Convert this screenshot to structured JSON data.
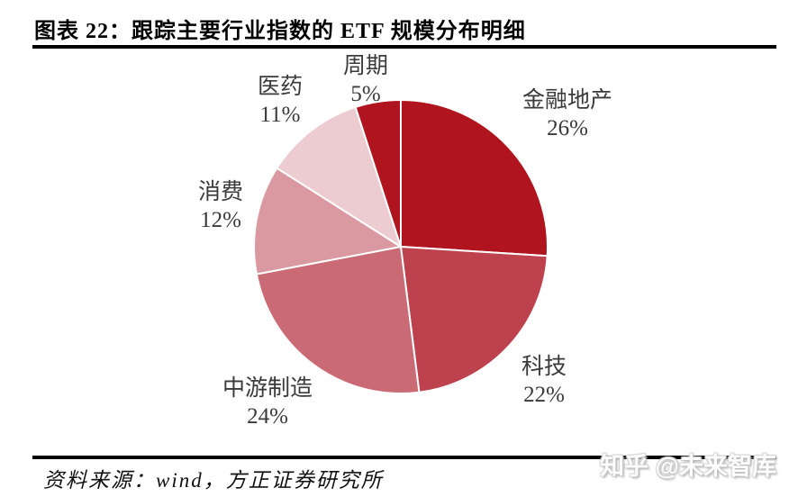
{
  "figure": {
    "title": "图表 22：跟踪主要行业指数的 ETF 规模分布明细",
    "source": "资料来源：wind，方正证券研究所",
    "watermark": "知乎 @未来智库"
  },
  "chart_data": {
    "type": "pie",
    "title": "跟踪主要行业指数的 ETF 规模分布明细",
    "start_angle_deg": 0,
    "direction": "clockwise",
    "legend_position": "none",
    "label_color": "#3A3A3A",
    "stroke_color": "#FFFFFF",
    "stroke_width": 2,
    "slices": [
      {
        "label": "金融地产",
        "value": 26,
        "pct_label": "26%",
        "color": "#B0141F"
      },
      {
        "label": "科技",
        "value": 22,
        "pct_label": "22%",
        "color": "#BD424E"
      },
      {
        "label": "中游制造",
        "value": 24,
        "pct_label": "24%",
        "color": "#CA6A75"
      },
      {
        "label": "消费",
        "value": 12,
        "pct_label": "12%",
        "color": "#DA99A1"
      },
      {
        "label": "医药",
        "value": 11,
        "pct_label": "11%",
        "color": "#ECCCD1"
      },
      {
        "label": "周期",
        "value": 5,
        "pct_label": "5%",
        "color": "#B0141F"
      }
    ]
  }
}
